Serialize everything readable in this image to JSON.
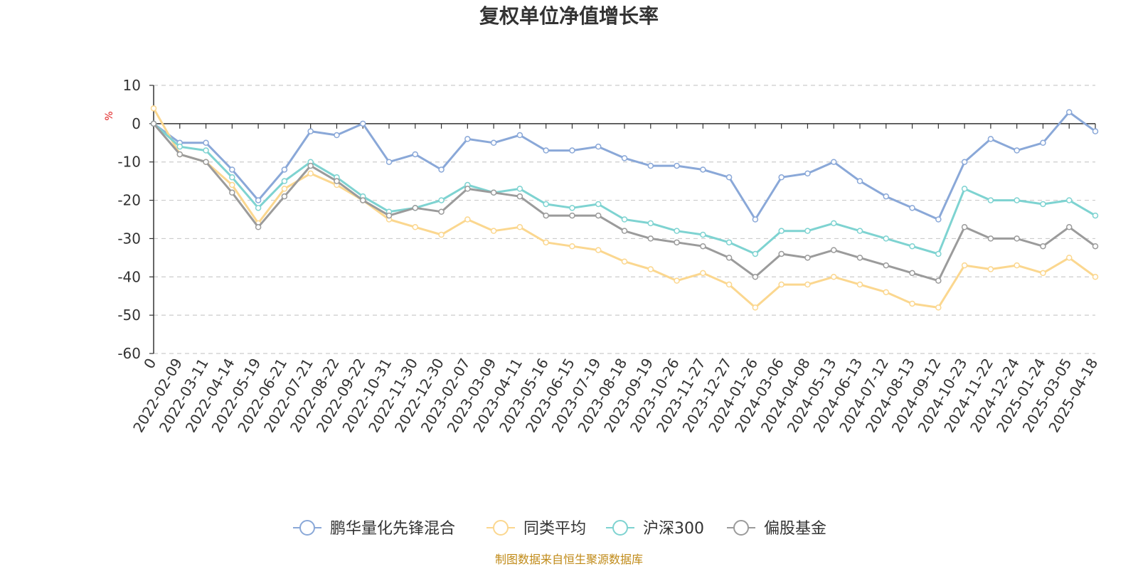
{
  "chart_data": {
    "type": "line",
    "title": "复权单位净值增长率",
    "ylabel": "%",
    "xlabel": "",
    "ylim": [
      -60,
      10
    ],
    "yticks": [
      10,
      0,
      -10,
      -20,
      -30,
      -40,
      -50,
      -60
    ],
    "grid": true,
    "legend_position": "bottom",
    "categories": [
      "0",
      "2022-02-09",
      "2022-03-11",
      "2022-04-14",
      "2022-05-19",
      "2022-06-21",
      "2022-07-21",
      "2022-08-22",
      "2022-09-22",
      "2022-10-31",
      "2022-11-30",
      "2022-12-30",
      "2023-02-07",
      "2023-03-09",
      "2023-04-11",
      "2023-05-16",
      "2023-06-15",
      "2023-07-19",
      "2023-08-18",
      "2023-09-19",
      "2023-10-26",
      "2023-11-27",
      "2023-12-27",
      "2024-01-26",
      "2024-03-06",
      "2024-04-08",
      "2024-05-13",
      "2024-06-13",
      "2024-07-12",
      "2024-08-13",
      "2024-09-12",
      "2024-10-23",
      "2024-11-22",
      "2024-12-24",
      "2025-01-24",
      "2025-03-05",
      "2025-04-18"
    ],
    "series": [
      {
        "name": "鹏华量化先锋混合",
        "color": "#8aa8d8",
        "values": [
          0,
          -5,
          -5,
          -12,
          -20,
          -12,
          -2,
          -3,
          0,
          -10,
          -8,
          -12,
          -4,
          -5,
          -3,
          -7,
          -7,
          -6,
          -9,
          -11,
          -11,
          -12,
          -14,
          -25,
          -14,
          -13,
          -10,
          -15,
          -19,
          -22,
          -25,
          -10,
          -4,
          -7,
          -5,
          3,
          -2
        ]
      },
      {
        "name": "同类平均",
        "color": "#fbd78f",
        "values": [
          4,
          -8,
          -10,
          -16,
          -26,
          -17,
          -13,
          -16,
          -20,
          -25,
          -27,
          -29,
          -25,
          -28,
          -27,
          -31,
          -32,
          -33,
          -36,
          -38,
          -41,
          -39,
          -42,
          -48,
          -42,
          -42,
          -40,
          -42,
          -44,
          -47,
          -48,
          -37,
          -38,
          -37,
          -39,
          -35,
          -40
        ]
      },
      {
        "name": "沪深300",
        "color": "#7ed3d1",
        "values": [
          0,
          -6,
          -7,
          -14,
          -22,
          -15,
          -10,
          -14,
          -19,
          -23,
          -22,
          -20,
          -16,
          -18,
          -17,
          -21,
          -22,
          -21,
          -25,
          -26,
          -28,
          -29,
          -31,
          -34,
          -28,
          -28,
          -26,
          -28,
          -30,
          -32,
          -34,
          -17,
          -20,
          -20,
          -21,
          -20,
          -24
        ]
      },
      {
        "name": "偏股基金",
        "color": "#9b9b9b",
        "values": [
          0,
          -8,
          -10,
          -18,
          -27,
          -19,
          -11,
          -15,
          -20,
          -24,
          -22,
          -23,
          -17,
          -18,
          -19,
          -24,
          -24,
          -24,
          -28,
          -30,
          -31,
          -32,
          -35,
          -40,
          -34,
          -35,
          -33,
          -35,
          -37,
          -39,
          -41,
          -27,
          -30,
          -30,
          -32,
          -27,
          -32
        ]
      }
    ]
  },
  "source": "制图数据来自恒生聚源数据库"
}
